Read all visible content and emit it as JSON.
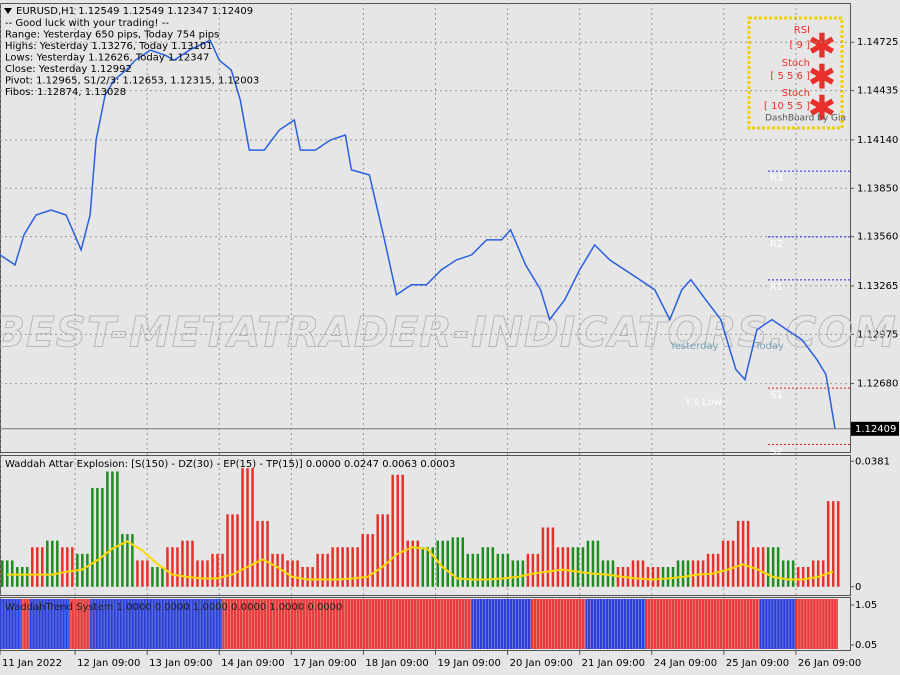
{
  "chart_data": [
    {
      "type": "line",
      "title": "EURUSD,H1 1.12549 1.12549 1.12347 1.12409",
      "info": [
        "-- Good luck with your trading! --",
        "Range: Yesterday 650 pips, Today 754 pips",
        "Highs: Yesterday 1.13276, Today 1.13101",
        "Lows:  Yesterday 1.12626, Today 1.12347",
        "Close: Yesterday 1.12992",
        "Pivot: 1.12965, S1/2/3: 1.12653, 1.12315, 1.12003",
        "Fibos: 1.12874, 1.13028"
      ],
      "watermark": "BEST-METATRADER-INDICATORS.COM",
      "x": [
        0,
        5,
        8,
        12,
        17,
        22,
        27,
        30,
        32,
        35,
        38,
        42,
        45,
        50,
        55,
        58,
        63,
        70,
        73,
        77,
        80,
        83,
        88,
        93,
        98,
        100,
        105,
        110,
        115,
        117,
        123,
        128,
        132,
        137,
        142,
        147,
        152,
        157,
        162,
        167,
        170,
        175,
        180,
        183,
        188,
        193,
        198,
        203,
        208,
        213,
        218,
        223,
        227,
        230,
        235,
        240,
        245,
        248,
        252,
        257,
        262,
        267,
        272,
        275,
        278
      ],
      "series": [
        {
          "color": "#2a5fe0",
          "values": [
            1.13451,
            1.13391,
            1.13571,
            1.1369,
            1.1372,
            1.1369,
            1.13481,
            1.1369,
            1.14139,
            1.14408,
            1.14498,
            1.14558,
            1.14617,
            1.14677,
            1.14647,
            1.14617,
            1.14677,
            1.14737,
            1.14617,
            1.14558,
            1.14378,
            1.14079,
            1.14079,
            1.14199,
            1.14259,
            1.14079,
            1.14079,
            1.14139,
            1.14169,
            1.1396,
            1.1393,
            1.13541,
            1.13212,
            1.13272,
            1.13272,
            1.13362,
            1.13421,
            1.13451,
            1.13541,
            1.13541,
            1.13601,
            1.13391,
            1.13242,
            1.13063,
            1.13182,
            1.13362,
            1.13511,
            1.13421,
            1.13362,
            1.13302,
            1.13242,
            1.13063,
            1.13242,
            1.13302,
            1.13182,
            1.13063,
            1.12764,
            1.12704,
            1.13003,
            1.13063,
            1.13003,
            1.12943,
            1.12823,
            1.12734,
            1.12409
          ]
        }
      ],
      "last_price": 1.12409,
      "xlim": [
        0,
        283
      ],
      "xticks": [
        {
          "value": 0,
          "label": "11 Jan 2022"
        },
        {
          "value": 25,
          "label": "12 Jan 09:00"
        },
        {
          "value": 49,
          "label": "13 Jan 09:00"
        },
        {
          "value": 73,
          "label": "14 Jan 09:00"
        },
        {
          "value": 97,
          "label": "17 Jan 09:00"
        },
        {
          "value": 121,
          "label": "18 Jan 09:00"
        },
        {
          "value": 145,
          "label": "19 Jan 09:00"
        },
        {
          "value": 169,
          "label": "20 Jan 09:00"
        },
        {
          "value": 193,
          "label": "21 Jan 09:00"
        },
        {
          "value": 217,
          "label": "24 Jan 09:00"
        },
        {
          "value": 241,
          "label": "25 Jan 09:00"
        },
        {
          "value": 265,
          "label": "26 Jan 09:00"
        }
      ],
      "ylim": [
        1.1227,
        1.1496
      ],
      "yticks": [
        1.14725,
        1.14435,
        {
          "value": 1.1414,
          "label": "1.14140"
        },
        {
          "value": 1.1385,
          "label": "1.13850"
        },
        {
          "value": 1.1356,
          "label": "1.13560"
        },
        1.13265,
        1.12975,
        {
          "value": 1.1268,
          "label": "1.12680"
        }
      ],
      "levels": [
        {
          "label": "R3",
          "value": 1.13953,
          "color": "#2233cc"
        },
        {
          "label": "R2",
          "value": 1.13559,
          "color": "#2233cc"
        },
        {
          "label": "R1",
          "value": 1.13301,
          "color": "#2233cc"
        },
        {
          "label": "S1",
          "value": 1.12653,
          "color": "#dd2222"
        },
        {
          "label": "S2",
          "value": 1.12315,
          "color": "#dd2222"
        }
      ],
      "day_labels": [
        "Yesterday",
        "Today",
        "Y's Low"
      ],
      "dashboard": [
        "RSI",
        "[ 9 ]",
        "Stoch",
        "[ 5 5 6 ]",
        "Stoch",
        "[ 10 5 5 ]",
        "DashBoard by Gia"
      ],
      "grid": true
    },
    {
      "type": "bar",
      "title": "Waddah Attar Explosion: [S(150) - DZ(30) - EP(15) - TP(15)] 0.0000 0.0247 0.0063 0.0003",
      "x": [
        0,
        5,
        10,
        15,
        20,
        25,
        30,
        35,
        40,
        45,
        50,
        55,
        60,
        65,
        70,
        75,
        80,
        85,
        90,
        95,
        100,
        105,
        110,
        115,
        120,
        125,
        130,
        135,
        140,
        145,
        150,
        155,
        160,
        165,
        170,
        175,
        180,
        185,
        190,
        195,
        200,
        205,
        210,
        215,
        220,
        225,
        230,
        235,
        240,
        245,
        250,
        255,
        260,
        265,
        270,
        275
      ],
      "values": [
        0.008,
        0.006,
        0.012,
        0.014,
        0.012,
        0.01,
        0.03,
        0.035,
        0.016,
        0.008,
        0.006,
        0.012,
        0.014,
        0.008,
        0.01,
        0.022,
        0.036,
        0.02,
        0.01,
        0.008,
        0.006,
        0.01,
        0.012,
        0.012,
        0.016,
        0.022,
        0.034,
        0.014,
        0.012,
        0.014,
        0.015,
        0.01,
        0.012,
        0.01,
        0.008,
        0.01,
        0.018,
        0.012,
        0.012,
        0.014,
        0.008,
        0.006,
        0.008,
        0.006,
        0.006,
        0.008,
        0.008,
        0.01,
        0.014,
        0.02,
        0.012,
        0.012,
        0.008,
        0.006,
        0.008,
        0.026
      ],
      "colors": [
        "#1f8c1f",
        "#1f8c1f",
        "#e8302a",
        "#1f8c1f",
        "#e8302a",
        "#1f8c1f",
        "#1f8c1f",
        "#1f8c1f",
        "#1f8c1f",
        "#e8302a",
        "#1f8c1f",
        "#e8302a",
        "#e8302a",
        "#e8302a",
        "#e8302a",
        "#e8302a",
        "#e8302a",
        "#e8302a",
        "#e8302a",
        "#e8302a",
        "#e8302a",
        "#e8302a",
        "#e8302a",
        "#e8302a",
        "#e8302a",
        "#e8302a",
        "#e8302a",
        "#e8302a",
        "#1f8c1f",
        "#1f8c1f",
        "#1f8c1f",
        "#1f8c1f",
        "#1f8c1f",
        "#1f8c1f",
        "#1f8c1f",
        "#e8302a",
        "#e8302a",
        "#e8302a",
        "#1f8c1f",
        "#1f8c1f",
        "#1f8c1f",
        "#e8302a",
        "#e8302a",
        "#e8302a",
        "#1f8c1f",
        "#1f8c1f",
        "#e8302a",
        "#e8302a",
        "#e8302a",
        "#e8302a",
        "#e8302a",
        "#1f8c1f",
        "#1f8c1f",
        "#e8302a",
        "#e8302a",
        "#e8302a"
      ],
      "line": {
        "color": "#ffd700",
        "values": [
          0.0037,
          0.0037,
          0.0037,
          0.0037,
          0.0046,
          0.0052,
          0.008,
          0.0115,
          0.0138,
          0.011,
          0.007,
          0.0037,
          0.003,
          0.0025,
          0.0025,
          0.0037,
          0.006,
          0.0083,
          0.006,
          0.003,
          0.0022,
          0.0022,
          0.0022,
          0.0025,
          0.003,
          0.006,
          0.01,
          0.012,
          0.0115,
          0.006,
          0.0025,
          0.0022,
          0.0022,
          0.0025,
          0.003,
          0.004,
          0.0046,
          0.0052,
          0.0046,
          0.004,
          0.0037,
          0.003,
          0.0025,
          0.0022,
          0.0025,
          0.003,
          0.0037,
          0.004,
          0.0052,
          0.0068,
          0.0052,
          0.003,
          0.0022,
          0.0022,
          0.003,
          0.0046
        ]
      },
      "xlim": [
        0,
        283
      ],
      "ylim": [
        -0.0025,
        0.0397
      ],
      "yticks": [
        0.0381,
        0
      ]
    },
    {
      "type": "segments",
      "title": "WaddahTrend System 1.0000 0.0000 1.0000 0.0000 1.0000 0.0000",
      "segments": [
        [
          0,
          7,
          "#2a3fd8"
        ],
        [
          7,
          10,
          "#e83a3a"
        ],
        [
          10,
          23,
          "#2a3fd8"
        ],
        [
          23,
          30,
          "#e83a3a"
        ],
        [
          30,
          74,
          "#2a3fd8"
        ],
        [
          74,
          157,
          "#e83a3a"
        ],
        [
          157,
          177,
          "#2a3fd8"
        ],
        [
          177,
          195,
          "#e83a3a"
        ],
        [
          195,
          215,
          "#2a3fd8"
        ],
        [
          215,
          253,
          "#e83a3a"
        ],
        [
          253,
          265,
          "#2a3fd8"
        ],
        [
          265,
          279,
          "#e83a3a"
        ]
      ],
      "xlim": [
        0,
        283
      ],
      "ylim": [
        -0.075,
        1.225
      ],
      "yticks": [
        1.05,
        0.05
      ]
    }
  ]
}
